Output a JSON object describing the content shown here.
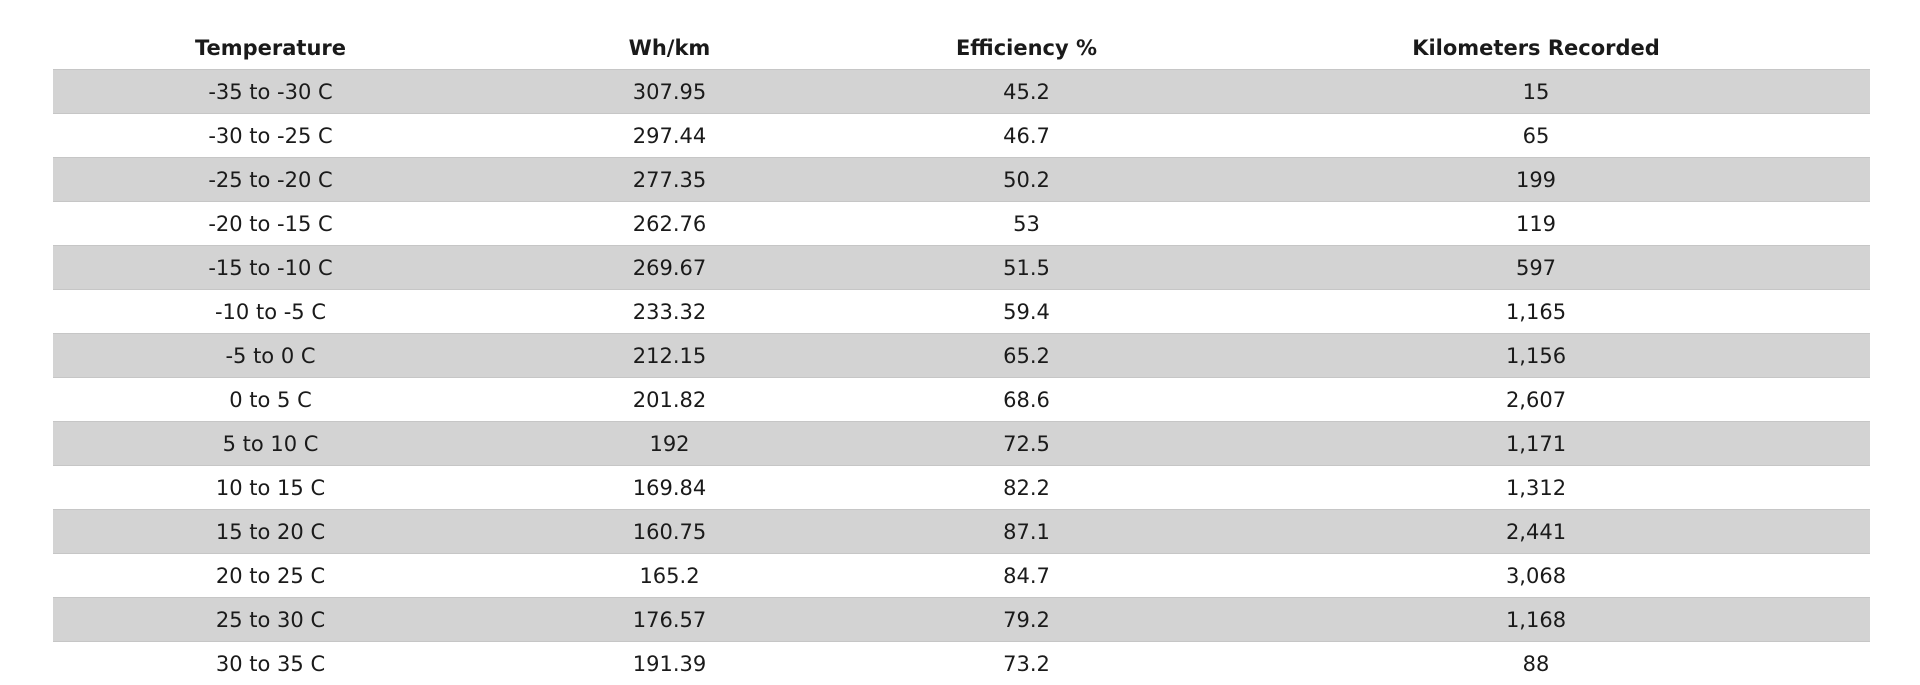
{
  "table": {
    "headers": [
      "Temperature",
      "Wh/km",
      "Efficiency %",
      "Kilometers Recorded"
    ],
    "rows": [
      [
        "-35 to -30 C",
        "307.95",
        "45.2",
        "15"
      ],
      [
        "-30 to -25 C",
        "297.44",
        "46.7",
        "65"
      ],
      [
        "-25 to -20 C",
        "277.35",
        "50.2",
        "199"
      ],
      [
        "-20 to -15 C",
        "262.76",
        "53",
        "119"
      ],
      [
        "-15 to -10 C",
        "269.67",
        "51.5",
        "597"
      ],
      [
        "-10 to -5 C",
        "233.32",
        "59.4",
        "1,165"
      ],
      [
        "-5 to 0 C",
        "212.15",
        "65.2",
        "1,156"
      ],
      [
        "0 to 5 C",
        "201.82",
        "68.6",
        "2,607"
      ],
      [
        "5 to 10 C",
        "192",
        "72.5",
        "1,171"
      ],
      [
        "10 to 15 C",
        "169.84",
        "82.2",
        "1,312"
      ],
      [
        "15 to 20 C",
        "160.75",
        "87.1",
        "2,441"
      ],
      [
        "20 to 25 C",
        "165.2",
        "84.7",
        "3,068"
      ],
      [
        "25 to 30 C",
        "176.57",
        "79.2",
        "1,168"
      ],
      [
        "30 to 35 C",
        "191.39",
        "73.2",
        "88"
      ]
    ]
  },
  "colors": {
    "stripe": "#d3d3d3",
    "background": "#ffffff",
    "text": "#1a1a1a"
  }
}
